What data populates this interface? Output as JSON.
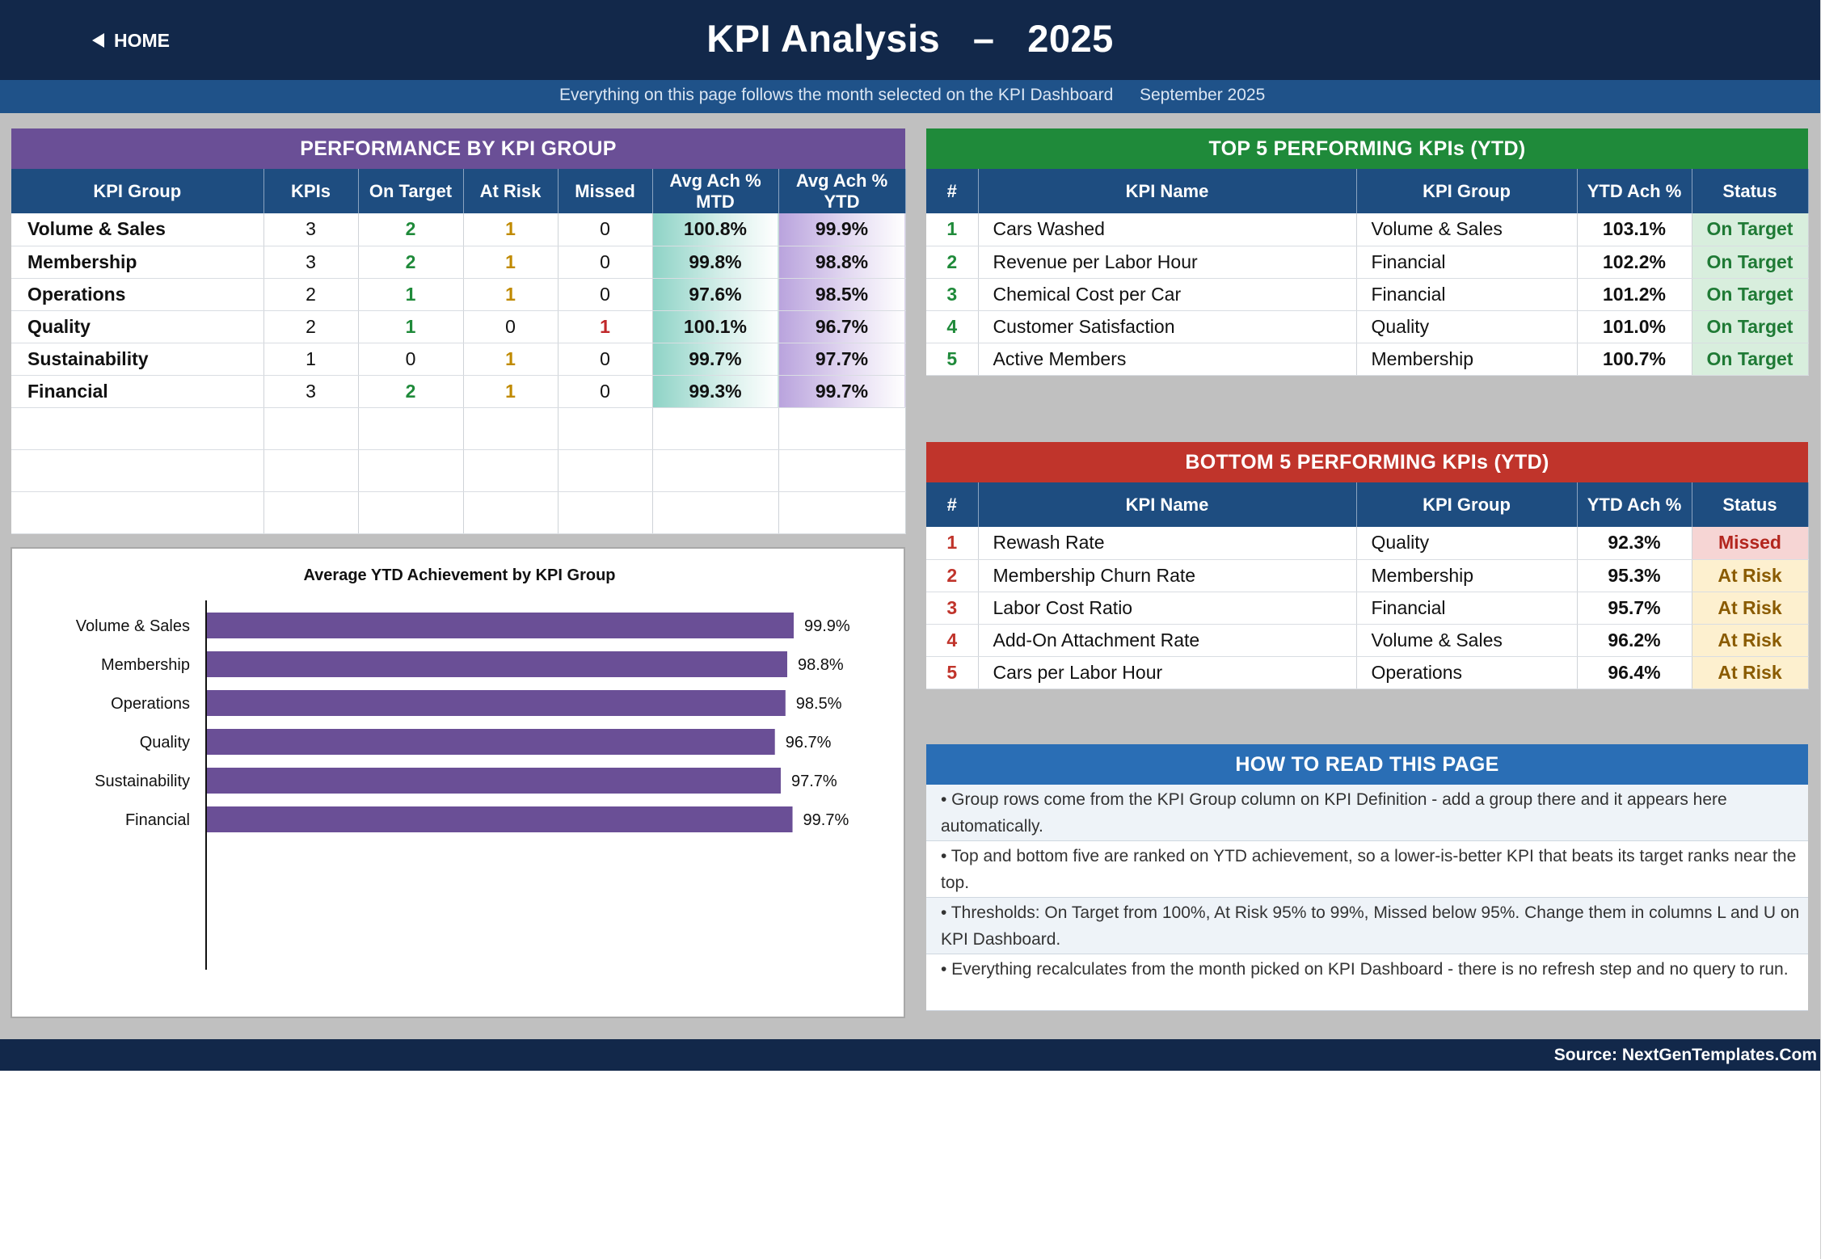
{
  "header": {
    "home_label": "HOME",
    "title": "KPI Analysis",
    "title_dash": "–",
    "year": "2025",
    "subtitle": "Everything on this page follows the month selected on the KPI Dashboard",
    "month": "September 2025"
  },
  "group_panel": {
    "title": "PERFORMANCE BY KPI GROUP",
    "columns": [
      "KPI Group",
      "KPIs",
      "On Target",
      "At Risk",
      "Missed",
      "Avg Ach % MTD",
      "Avg Ach % YTD"
    ],
    "rows": [
      {
        "group": "Volume & Sales",
        "kpis": "3",
        "on_target": "2",
        "at_risk": "1",
        "missed": "0",
        "mtd": "100.8%",
        "ytd": "99.9%"
      },
      {
        "group": "Membership",
        "kpis": "3",
        "on_target": "2",
        "at_risk": "1",
        "missed": "0",
        "mtd": "99.8%",
        "ytd": "98.8%"
      },
      {
        "group": "Operations",
        "kpis": "2",
        "on_target": "1",
        "at_risk": "1",
        "missed": "0",
        "mtd": "97.6%",
        "ytd": "98.5%"
      },
      {
        "group": "Quality",
        "kpis": "2",
        "on_target": "1",
        "at_risk": "0",
        "missed": "1",
        "mtd": "100.1%",
        "ytd": "96.7%"
      },
      {
        "group": "Sustainability",
        "kpis": "1",
        "on_target": "0",
        "at_risk": "1",
        "missed": "0",
        "mtd": "99.7%",
        "ytd": "97.7%"
      },
      {
        "group": "Financial",
        "kpis": "3",
        "on_target": "2",
        "at_risk": "1",
        "missed": "0",
        "mtd": "99.3%",
        "ytd": "99.7%"
      }
    ]
  },
  "chart_data": {
    "type": "bar",
    "orientation": "horizontal",
    "title": "Average YTD Achievement by KPI Group",
    "categories": [
      "Volume & Sales",
      "Membership",
      "Operations",
      "Quality",
      "Sustainability",
      "Financial"
    ],
    "values": [
      99.9,
      98.8,
      98.5,
      96.7,
      97.7,
      99.7
    ],
    "data_labels": [
      "99.9%",
      "98.8%",
      "98.5%",
      "96.7%",
      "97.7%",
      "99.7%"
    ],
    "xlim": [
      0,
      150
    ],
    "bar_color": "#6a4f96",
    "grid": false,
    "legend": "none"
  },
  "top5": {
    "title": "TOP 5 PERFORMING KPIs  (YTD)",
    "columns": [
      "#",
      "KPI Name",
      "KPI Group",
      "YTD Ach %",
      "Status"
    ],
    "rows": [
      {
        "rank": "1",
        "name": "Cars Washed",
        "group": "Volume & Sales",
        "ach": "103.1%",
        "status": "On Target"
      },
      {
        "rank": "2",
        "name": "Revenue per Labor Hour",
        "group": "Financial",
        "ach": "102.2%",
        "status": "On Target"
      },
      {
        "rank": "3",
        "name": "Chemical Cost per Car",
        "group": "Financial",
        "ach": "101.2%",
        "status": "On Target"
      },
      {
        "rank": "4",
        "name": "Customer Satisfaction",
        "group": "Quality",
        "ach": "101.0%",
        "status": "On Target"
      },
      {
        "rank": "5",
        "name": "Active Members",
        "group": "Membership",
        "ach": "100.7%",
        "status": "On Target"
      }
    ]
  },
  "bottom5": {
    "title": "BOTTOM 5 PERFORMING KPIs  (YTD)",
    "columns": [
      "#",
      "KPI Name",
      "KPI Group",
      "YTD Ach %",
      "Status"
    ],
    "rows": [
      {
        "rank": "1",
        "name": "Rewash Rate",
        "group": "Quality",
        "ach": "92.3%",
        "status": "Missed"
      },
      {
        "rank": "2",
        "name": "Membership Churn Rate",
        "group": "Membership",
        "ach": "95.3%",
        "status": "At Risk"
      },
      {
        "rank": "3",
        "name": "Labor Cost Ratio",
        "group": "Financial",
        "ach": "95.7%",
        "status": "At Risk"
      },
      {
        "rank": "4",
        "name": "Add-On Attachment Rate",
        "group": "Volume & Sales",
        "ach": "96.2%",
        "status": "At Risk"
      },
      {
        "rank": "5",
        "name": "Cars per Labor Hour",
        "group": "Operations",
        "ach": "96.4%",
        "status": "At Risk"
      }
    ]
  },
  "how_to_read": {
    "title": "HOW TO READ THIS PAGE",
    "items": [
      "•  Group rows come from the KPI Group column on KPI Definition - add a group there and it appears here automatically.",
      "•  Top and bottom five are ranked on YTD achievement, so a lower-is-better KPI that beats its target ranks near the top.",
      "•  Thresholds: On Target from 100%, At Risk 95% to 99%, Missed below 95%. Change them in columns L and U on KPI Dashboard.",
      "•  Everything recalculates from the month picked on KPI Dashboard - there is no refresh step and no query to run."
    ]
  },
  "footer": {
    "source": "Source: NextGenTemplates.Com"
  }
}
